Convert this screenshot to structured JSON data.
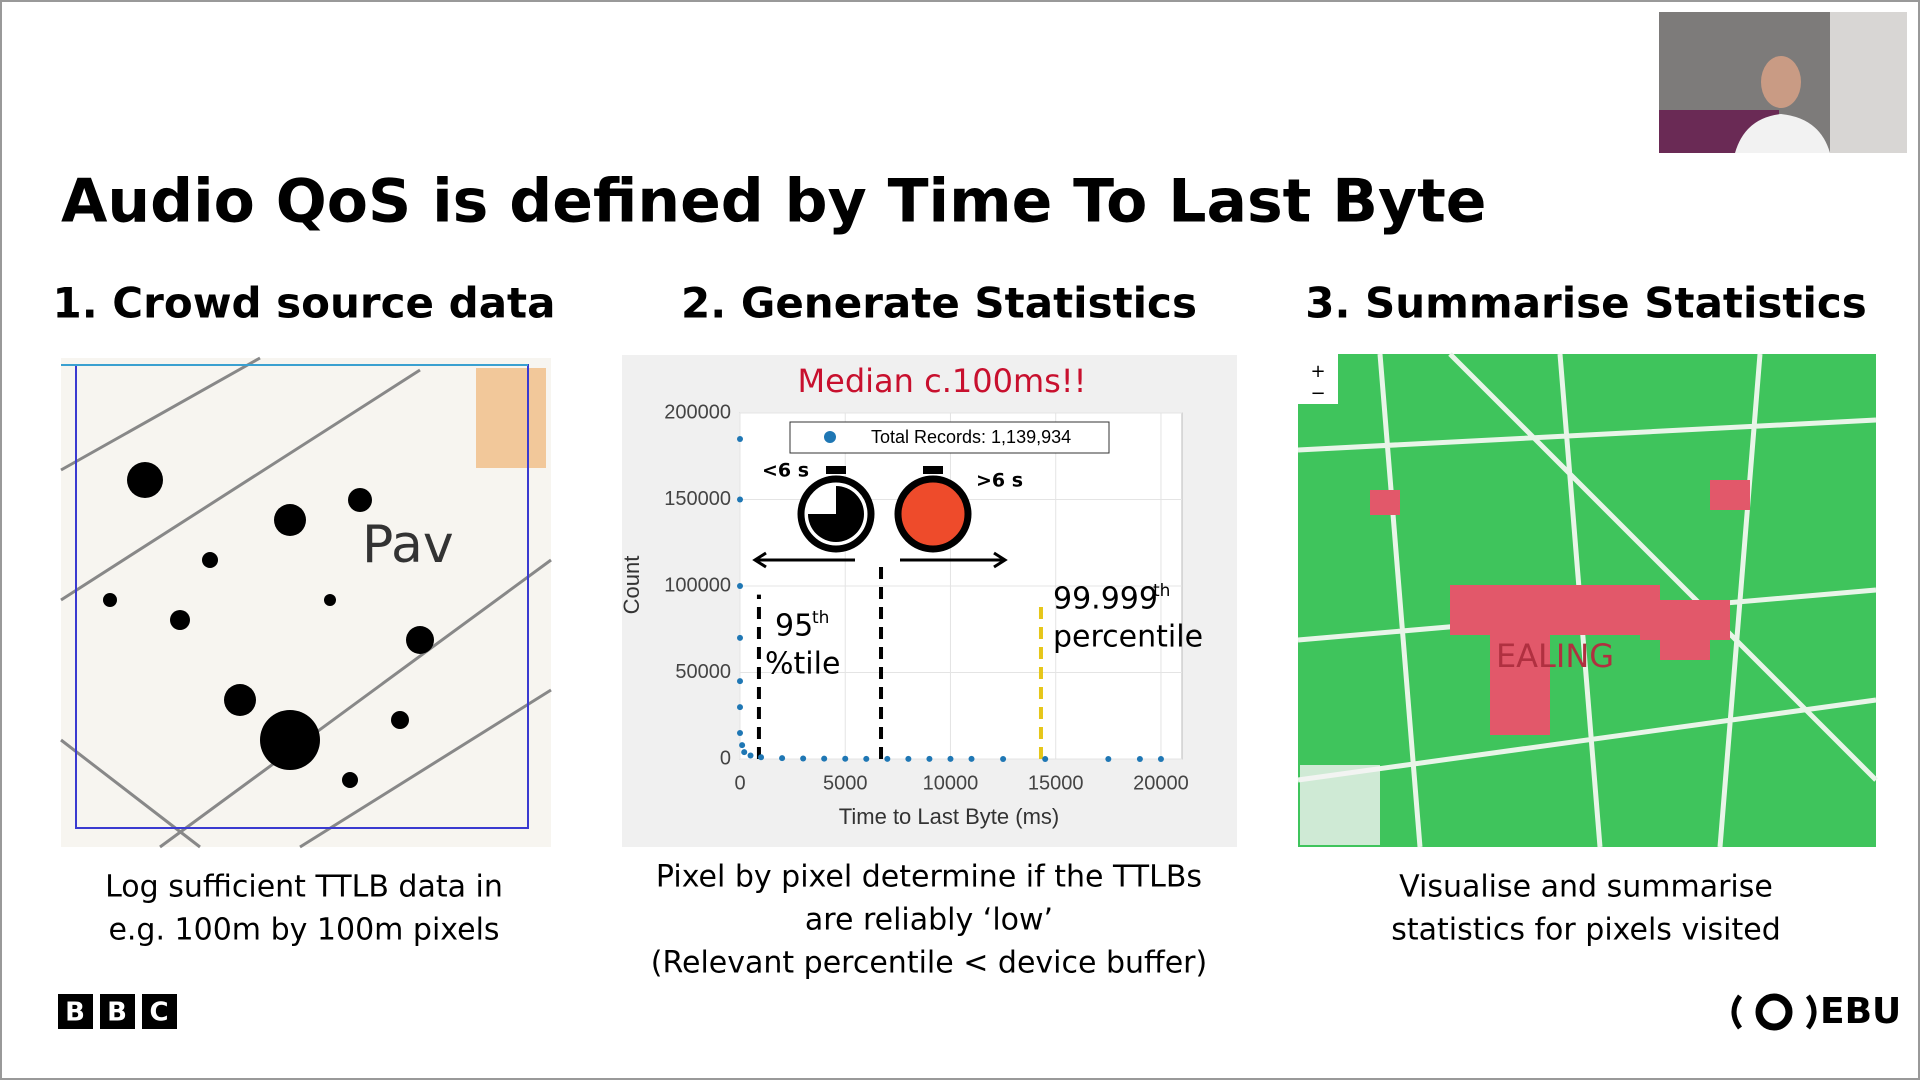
{
  "title": "Audio QoS is defined by Time To Last Byte",
  "columns": [
    {
      "heading": "1. Crowd source data",
      "caption": [
        "Log sufficient TTLB data in",
        "e.g. 100m by 100m pixels"
      ],
      "map_label": "Pav"
    },
    {
      "heading": "2. Generate Statistics",
      "caption": [
        "Pixel by pixel determine if the TTLBs",
        "are reliably ‘low’",
        "(Relevant percentile < device buffer)"
      ]
    },
    {
      "heading": "3. Summarise Statistics",
      "caption": [
        "Visualise and summarise",
        "statistics for pixels visited"
      ],
      "map_label": "EALING"
    }
  ],
  "chart": {
    "type": "scatter",
    "headline": "Median c.100ms!!",
    "xlabel": "Time to Last Byte (ms)",
    "ylabel": "Count",
    "xlim": [
      0,
      21000
    ],
    "ylim": [
      0,
      200000
    ],
    "xticks": [
      0,
      5000,
      10000,
      15000,
      20000
    ],
    "yticks": [
      0,
      50000,
      100000,
      150000,
      200000
    ],
    "grid": true,
    "series": [
      {
        "name": "Total Records: 1,139,934",
        "color": "#1f77b4",
        "x": [
          0,
          0,
          0,
          0,
          0,
          0,
          0,
          100,
          200,
          500,
          1000,
          2000,
          3000,
          4000,
          5000,
          6000,
          7000,
          8000,
          9000,
          10000,
          11000,
          12500,
          14500,
          17500,
          19000,
          20000
        ],
        "values": [
          185000,
          150000,
          100000,
          70000,
          45000,
          30000,
          15000,
          8000,
          4000,
          2000,
          1000,
          500,
          300,
          200,
          150,
          100,
          100,
          80,
          60,
          50,
          40,
          30,
          20,
          10,
          10,
          10
        ]
      }
    ],
    "vlines": [
      {
        "x": 900,
        "top": 95000,
        "color": "#000000"
      },
      {
        "x": 6700,
        "top": 113000,
        "color": "#000000"
      },
      {
        "x": 14300,
        "top": 92000,
        "color": "#e6c619"
      }
    ],
    "annotations": {
      "fast": "<6 s",
      "slow": ">6 s",
      "p95": "95",
      "p95_sup": "th",
      "p95_unit": "%tile",
      "p99": "99.999",
      "p99_sup": "th",
      "p99_unit": "percentile"
    }
  },
  "footer": {
    "left_logo": [
      "B",
      "B",
      "C"
    ],
    "right_logo": "EBU"
  }
}
